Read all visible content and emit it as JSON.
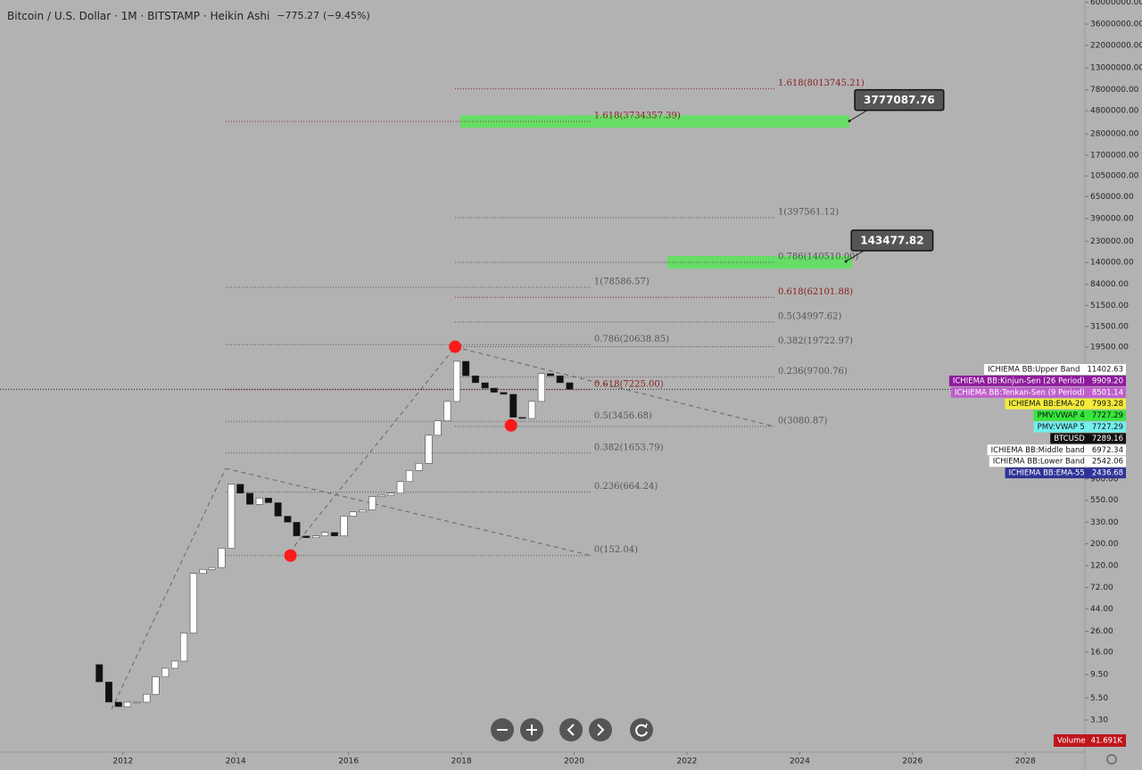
{
  "chart_data": {
    "type": "candlestick",
    "title": "Bitcoin / U.S. Dollar · 1M · BITSTAMP · Heikin Ashi",
    "change": {
      "value": -775.27,
      "label": "−775.27"
    },
    "change_pct": {
      "value": -9.45,
      "label": "(−9.45%)"
    },
    "log": true,
    "grid": false,
    "xlim": [
      2009.82,
      2029.04
    ],
    "xticks": [
      2012,
      2014,
      2016,
      2018,
      2020,
      2022,
      2024,
      2026,
      2028
    ],
    "ylim": [
      1.66,
      63200000
    ],
    "yticks": [
      {
        "value": 60000000,
        "label": "60000000.00"
      },
      {
        "value": 36000000,
        "label": "36000000.00"
      },
      {
        "value": 22000000,
        "label": "22000000.00"
      },
      {
        "value": 13000000,
        "label": "13000000.00"
      },
      {
        "value": 7800000,
        "label": "7800000.00"
      },
      {
        "value": 4800000,
        "label": "4800000.00"
      },
      {
        "value": 2800000,
        "label": "2800000.00"
      },
      {
        "value": 1700000,
        "label": "1700000.00"
      },
      {
        "value": 1050000,
        "label": "1050000.00"
      },
      {
        "value": 650000,
        "label": "650000.00"
      },
      {
        "value": 390000,
        "label": "390000.00"
      },
      {
        "value": 230000,
        "label": "230000.00"
      },
      {
        "value": 140000,
        "label": "140000.00"
      },
      {
        "value": 84000,
        "label": "84000.00"
      },
      {
        "value": 51500,
        "label": "51500.00"
      },
      {
        "value": 31500,
        "label": "31500.00"
      },
      {
        "value": 19500,
        "label": "19500.00"
      },
      {
        "value": 900,
        "label": "900.00"
      },
      {
        "value": 550,
        "label": "550.00"
      },
      {
        "value": 330,
        "label": "330.00"
      },
      {
        "value": 200,
        "label": "200.00"
      },
      {
        "value": 120,
        "label": "120.00"
      },
      {
        "value": 72,
        "label": "72.00"
      },
      {
        "value": 44,
        "label": "44.00"
      },
      {
        "value": 26,
        "label": "26.00"
      },
      {
        "value": 16,
        "label": "16.00"
      },
      {
        "value": 9.5,
        "label": "9.50"
      },
      {
        "value": 5.5,
        "label": "5.50"
      },
      {
        "value": 3.3,
        "label": "3.30"
      }
    ],
    "x": [
      2011.58,
      2011.75,
      2011.92,
      2012.08,
      2012.25,
      2012.42,
      2012.58,
      2012.75,
      2012.92,
      2013.08,
      2013.25,
      2013.42,
      2013.58,
      2013.75,
      2013.92,
      2014.08,
      2014.25,
      2014.42,
      2014.58,
      2014.75,
      2014.92,
      2015.08,
      2015.25,
      2015.42,
      2015.58,
      2015.75,
      2015.92,
      2016.08,
      2016.25,
      2016.42,
      2016.58,
      2016.75,
      2016.92,
      2017.08,
      2017.25,
      2017.42,
      2017.58,
      2017.75,
      2017.92,
      2018.08,
      2018.25,
      2018.42,
      2018.58,
      2018.75,
      2018.92,
      2019.08,
      2019.25,
      2019.42,
      2019.58,
      2019.75,
      2019.92
    ],
    "open": [
      12,
      8,
      5,
      4.5,
      5,
      5,
      6,
      9,
      11,
      13,
      25,
      100,
      110,
      115,
      180,
      800,
      650,
      500,
      580,
      520,
      380,
      330,
      240,
      230,
      240,
      260,
      240,
      380,
      420,
      440,
      600,
      620,
      650,
      850,
      1100,
      1300,
      2500,
      3500,
      5500,
      14000,
      10000,
      8500,
      7500,
      6800,
      6500,
      3800,
      3700,
      5500,
      10500,
      10000,
      8500
    ],
    "close": [
      8,
      5,
      4.5,
      5,
      5,
      6,
      9,
      11,
      13,
      25,
      100,
      110,
      115,
      180,
      800,
      650,
      500,
      580,
      520,
      380,
      330,
      240,
      230,
      240,
      260,
      240,
      380,
      420,
      440,
      600,
      620,
      650,
      850,
      1100,
      1300,
      2500,
      3500,
      5500,
      14000,
      10000,
      8500,
      7500,
      6800,
      6500,
      3800,
      3700,
      5500,
      10500,
      10000,
      8500,
      7300
    ],
    "up_color": "#ffffff",
    "down_color": "#111111",
    "fib_levels": [
      {
        "label": "1.618(8013745.21)",
        "value": 8013745.21,
        "x": [
          2017.89,
          2023.55
        ],
        "color": "#8b2020"
      },
      {
        "label": "1(397561.12)",
        "value": 397561.12,
        "x": [
          2017.89,
          2023.55
        ],
        "color": "#555555"
      },
      {
        "label": "0.786(140510.00)",
        "value": 140510,
        "x": [
          2017.89,
          2023.55
        ],
        "color": "#555555"
      },
      {
        "label": "0.618(62101.88)",
        "value": 62101.88,
        "x": [
          2017.89,
          2023.55
        ],
        "color": "#8b2020"
      },
      {
        "label": "0.5(34997.62)",
        "value": 34997.62,
        "x": [
          2017.89,
          2023.55
        ],
        "color": "#555555"
      },
      {
        "label": "0.382(19722.97)",
        "value": 19722.97,
        "x": [
          2017.89,
          2023.55
        ],
        "color": "#555555"
      },
      {
        "label": "0.236(9700.76)",
        "value": 9700.76,
        "x": [
          2017.89,
          2023.55
        ],
        "color": "#555555"
      },
      {
        "label": "0(3080.87)",
        "value": 3080.87,
        "x": [
          2017.89,
          2023.55
        ],
        "color": "#555555"
      },
      {
        "label": "1.618(3734357.39)",
        "value": 3734357.39,
        "x": [
          2013.82,
          2020.29
        ],
        "color": "#8b2020"
      },
      {
        "label": "1(78586.57)",
        "value": 78586.57,
        "x": [
          2013.82,
          2020.29
        ],
        "color": "#555555"
      },
      {
        "label": "0.786(20638.85)",
        "value": 20638.85,
        "x": [
          2013.82,
          2020.29
        ],
        "color": "#555555"
      },
      {
        "label": "0.618(7225.00)",
        "value": 7225,
        "x": [
          2013.82,
          2020.29
        ],
        "color": "#8b2020"
      },
      {
        "label": "0.5(3456.68)",
        "value": 3456.68,
        "x": [
          2013.82,
          2020.29
        ],
        "color": "#555555"
      },
      {
        "label": "0.382(1653.79)",
        "value": 1653.79,
        "x": [
          2013.82,
          2020.29
        ],
        "color": "#555555"
      },
      {
        "label": "0.236(664.24)",
        "value": 664.24,
        "x": [
          2013.82,
          2020.29
        ],
        "color": "#555555"
      },
      {
        "label": "0(152.04)",
        "value": 152.04,
        "x": [
          2013.82,
          2020.29
        ],
        "color": "#555555"
      }
    ],
    "highlights": [
      {
        "value": 3734357.39,
        "x": [
          2017.98,
          2024.88
        ],
        "color": "#66dd66"
      },
      {
        "value": 140510,
        "x": [
          2021.65,
          2024.93
        ],
        "color": "#66dd66"
      }
    ],
    "callouts": [
      {
        "value": 3777087.76,
        "label": "3777087.76",
        "x": 2024.88
      },
      {
        "value": 143477.82,
        "label": "143477.82",
        "x": 2024.82
      }
    ],
    "pivots": {
      "x": [
        2017.89,
        2014.97,
        2018.88
      ],
      "values": [
        19666,
        152,
        3150
      ],
      "color": "#ff1a1a"
    },
    "price_labels": [
      {
        "name": "ICHIEMA BB:Upper Band",
        "value": 11402.63,
        "label": "11402.63",
        "color": "#ffffff",
        "text_color": "#111111"
      },
      {
        "name": "ICHIEMA BB:Kinjun-Sen (26 Period)",
        "value": 9909.2,
        "label": "9909.20",
        "color": "#8e1b9c",
        "text_color": "#ffffff"
      },
      {
        "name": "ICHIEMA BB:Tenkan-Sen (9 Period)",
        "value": 8501.14,
        "label": "8501.14",
        "color": "#bf5fcc",
        "text_color": "#ffffff"
      },
      {
        "name": "ICHIEMA BB:EMA-20",
        "value": 7993.28,
        "label": "7993.28",
        "color": "#f4ec3a",
        "text_color": "#111111"
      },
      {
        "name": "PMV:VWAP 4",
        "value": 7727.29,
        "label": "7727.29",
        "color": "#36e63c",
        "text_color": "#111111"
      },
      {
        "name": "PMV:VWAP 5",
        "value": 7727.29,
        "label": "7727.29",
        "color": "#72efef",
        "text_color": "#111111"
      },
      {
        "name": "BTCUSD",
        "value": 7289.16,
        "label": "7289.16",
        "color": "#111111",
        "text_color": "#ffffff"
      },
      {
        "name": "ICHIEMA BB:Middle band",
        "value": 6972.34,
        "label": "6972.34",
        "color": "#ffffff",
        "text_color": "#111111"
      },
      {
        "name": "ICHIEMA BB:Lower Band",
        "value": 2542.06,
        "label": "2542.06",
        "color": "#ffffff",
        "text_color": "#111111"
      },
      {
        "name": "ICHIEMA BB:EMA-55",
        "value": 2436.68,
        "label": "2436.68",
        "color": "#2f3396",
        "text_color": "#ffffff"
      }
    ],
    "volume": {
      "name": "Volume",
      "value": 41691,
      "label": "41.691K",
      "color": "#c0161c"
    }
  }
}
